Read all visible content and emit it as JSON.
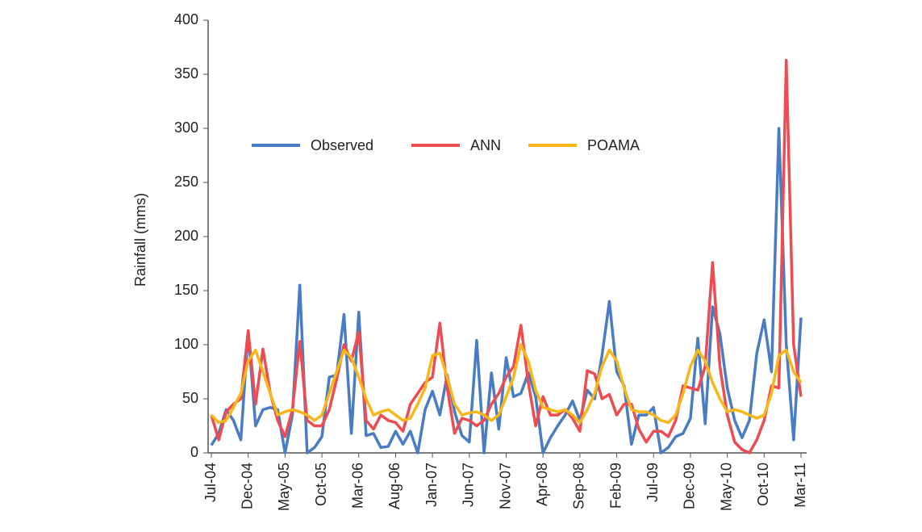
{
  "chart_data": {
    "type": "line",
    "y_label": "Rainfall (mms)",
    "categories": [
      "Jul-04",
      null,
      null,
      null,
      null,
      "Dec-04",
      null,
      null,
      null,
      null,
      "May-05",
      null,
      null,
      null,
      null,
      "Oct-05",
      null,
      null,
      null,
      null,
      "Mar-06",
      null,
      null,
      null,
      null,
      "Aug-06",
      null,
      null,
      null,
      null,
      "Jan-07",
      null,
      null,
      null,
      null,
      "Jun-07",
      null,
      null,
      null,
      null,
      "Nov-07",
      null,
      null,
      null,
      null,
      "Apr-08",
      null,
      null,
      null,
      null,
      "Sep-08",
      null,
      null,
      null,
      null,
      "Feb-09",
      null,
      null,
      null,
      null,
      "Jul-09",
      null,
      null,
      null,
      null,
      "Dec-09",
      null,
      null,
      null,
      null,
      "May-10",
      null,
      null,
      null,
      null,
      "Oct-10",
      null,
      null,
      null,
      null,
      "Mar-11"
    ],
    "series": [
      {
        "name": "Observed",
        "color": "#4a7cc4",
        "values": [
          7,
          18,
          40,
          30,
          12,
          112,
          25,
          40,
          42,
          40,
          0,
          35,
          155,
          0,
          5,
          15,
          70,
          72,
          128,
          18,
          130,
          16,
          18,
          5,
          6,
          20,
          8,
          20,
          0,
          40,
          57,
          35,
          72,
          38,
          16,
          10,
          104,
          0,
          74,
          22,
          88,
          52,
          55,
          74,
          52,
          0,
          14,
          25,
          35,
          48,
          30,
          58,
          50,
          90,
          140,
          75,
          62,
          8,
          35,
          35,
          42,
          0,
          5,
          15,
          18,
          32,
          106,
          27,
          135,
          110,
          60,
          30,
          14,
          30,
          92,
          123,
          75,
          300,
          100,
          12,
          125
        ]
      },
      {
        "name": "ANN",
        "color": "#ee4c50",
        "values": [
          35,
          12,
          38,
          45,
          50,
          113,
          45,
          96,
          55,
          30,
          15,
          40,
          103,
          30,
          25,
          25,
          40,
          68,
          100,
          85,
          112,
          30,
          22,
          35,
          30,
          28,
          20,
          45,
          55,
          65,
          70,
          120,
          60,
          18,
          32,
          30,
          25,
          30,
          45,
          55,
          70,
          80,
          118,
          65,
          25,
          52,
          35,
          35,
          40,
          32,
          20,
          76,
          73,
          50,
          54,
          35,
          45,
          45,
          22,
          10,
          20,
          20,
          15,
          30,
          62,
          60,
          58,
          80,
          176,
          80,
          35,
          10,
          3,
          0,
          12,
          30,
          62,
          60,
          363,
          100,
          52
        ]
      },
      {
        "name": "POAMA",
        "color": "#f7b718",
        "values": [
          35,
          28,
          30,
          42,
          55,
          85,
          95,
          75,
          55,
          35,
          38,
          40,
          38,
          35,
          30,
          35,
          55,
          75,
          95,
          88,
          70,
          50,
          35,
          38,
          40,
          35,
          30,
          32,
          45,
          60,
          90,
          92,
          70,
          45,
          35,
          37,
          38,
          35,
          30,
          35,
          52,
          70,
          100,
          85,
          58,
          42,
          40,
          38,
          40,
          35,
          28,
          40,
          55,
          80,
          95,
          85,
          60,
          40,
          38,
          38,
          35,
          30,
          28,
          35,
          55,
          80,
          95,
          85,
          65,
          50,
          38,
          40,
          38,
          35,
          32,
          35,
          55,
          90,
          95,
          75,
          65
        ]
      }
    ],
    "ylim": [
      0,
      400
    ],
    "yticks": [
      0,
      50,
      100,
      150,
      200,
      250,
      300,
      350,
      400
    ]
  }
}
